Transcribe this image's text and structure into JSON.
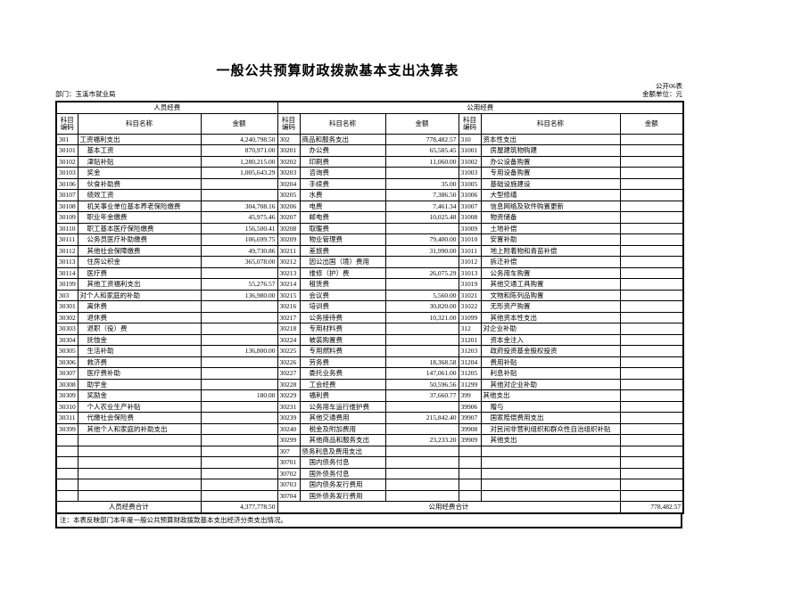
{
  "page": {
    "title": "一般公共预算财政拨款基本支出决算表",
    "form_code": "公开06表",
    "unit": "金额单位：元",
    "department": "部门：玉溪市就业局"
  },
  "table": {
    "group_headers": {
      "personnel": "人员经费",
      "public": "公用经费"
    },
    "col_headers": {
      "code": "科目编码",
      "name": "科目名称",
      "amount": "金额"
    },
    "rows": [
      [
        "301",
        "工资福利支出",
        "4,240,798.50",
        "302",
        "商品和服务支出",
        "778,482.57",
        "310",
        "资本性支出",
        ""
      ],
      [
        "30101",
        "基本工资",
        "870,971.00",
        "30201",
        "办公费",
        "65,585.45",
        "31001",
        "房屋建筑物购建",
        ""
      ],
      [
        "30102",
        "津贴补贴",
        "1,280,215.00",
        "30202",
        "印刷费",
        "11,060.00",
        "31002",
        "办公设备购置",
        ""
      ],
      [
        "30103",
        "奖金",
        "1,005,643.29",
        "30203",
        "咨询费",
        "",
        "31003",
        "专用设备购置",
        ""
      ],
      [
        "30106",
        "伙食补助费",
        "",
        "30204",
        "手续费",
        "35.00",
        "31005",
        "基础设施建设",
        ""
      ],
      [
        "30107",
        "绩效工资",
        "",
        "30205",
        "水费",
        "7,386.50",
        "31006",
        "大型修缮",
        ""
      ],
      [
        "30108",
        "机关事业单位基本养老保险缴费",
        "304,708.16",
        "30206",
        "电费",
        "7,461.34",
        "31007",
        "信息网络及软件购置更新",
        ""
      ],
      [
        "30109",
        "职业年金缴费",
        "45,975.46",
        "30207",
        "邮电费",
        "10,025.48",
        "31008",
        "物资储备",
        ""
      ],
      [
        "30110",
        "职工基本医疗保险缴费",
        "156,500.41",
        "30208",
        "取暖费",
        "",
        "31009",
        "土地补偿",
        ""
      ],
      [
        "30111",
        "公务员医疗补助缴费",
        "106,699.75",
        "30209",
        "物业管理费",
        "79,400.00",
        "31010",
        "安置补助",
        ""
      ],
      [
        "30112",
        "其他社会保障缴费",
        "49,730.86",
        "30211",
        "差旅费",
        "31,990.00",
        "31011",
        "地上附着物和青苗补偿",
        ""
      ],
      [
        "30113",
        "住房公积金",
        "365,078.00",
        "30212",
        "因公出国（境）费用",
        "",
        "31012",
        "拆迁补偿",
        ""
      ],
      [
        "30114",
        "医疗费",
        "",
        "30213",
        "维修（护）费",
        "26,075.29",
        "31013",
        "公务用车购置",
        ""
      ],
      [
        "30199",
        "其他工资福利支出",
        "55,276.57",
        "30214",
        "租赁费",
        "",
        "31019",
        "其他交通工具购置",
        ""
      ],
      [
        "303",
        "对个人和家庭的补助",
        "136,980.00",
        "30215",
        "会议费",
        "5,560.00",
        "31021",
        "文物和陈列品购置",
        ""
      ],
      [
        "30301",
        "离休费",
        "",
        "30216",
        "培训费",
        "30,820.00",
        "31022",
        "无形资产购置",
        ""
      ],
      [
        "30302",
        "退休费",
        "",
        "30217",
        "公务接待费",
        "10,321.00",
        "31099",
        "其他资本性支出",
        ""
      ],
      [
        "30303",
        "退职（役）费",
        "",
        "30218",
        "专用材料费",
        "",
        "312",
        "对企业补助",
        ""
      ],
      [
        "30304",
        "抚恤金",
        "",
        "30224",
        "被装购置费",
        "",
        "31201",
        "资本金注入",
        ""
      ],
      [
        "30305",
        "生活补助",
        "136,800.00",
        "30225",
        "专用燃料费",
        "",
        "31203",
        "政府投资基金股权投资",
        ""
      ],
      [
        "30306",
        "救济费",
        "",
        "30226",
        "劳务费",
        "18,368.58",
        "31204",
        "费用补贴",
        ""
      ],
      [
        "30307",
        "医疗费补助",
        "",
        "30227",
        "委托业务费",
        "147,061.00",
        "31205",
        "利息补贴",
        ""
      ],
      [
        "30308",
        "助学金",
        "",
        "30228",
        "工会经费",
        "50,596.56",
        "31299",
        "其他对企业补助",
        ""
      ],
      [
        "30309",
        "奖励金",
        "180.00",
        "30229",
        "福利费",
        "37,660.77",
        "399",
        "其他支出",
        ""
      ],
      [
        "30310",
        "个人农业生产补贴",
        "",
        "30231",
        "公务用车运行维护费",
        "",
        "39906",
        "赠与",
        ""
      ],
      [
        "30311",
        "代缴社会保险费",
        "",
        "30239",
        "其他交通费用",
        "215,842.40",
        "39907",
        "国家赔偿费用支出",
        ""
      ],
      [
        "30399",
        "其他个人和家庭的补助支出",
        "",
        "30240",
        "税金及附加费用",
        "",
        "39908",
        "对民间非营利组织和群众性自治组织补贴",
        ""
      ],
      [
        "",
        "",
        "",
        "30299",
        "其他商品和服务支出",
        "23,233.20",
        "39909",
        "其他支出",
        ""
      ],
      [
        "",
        "",
        "",
        "307",
        "债务利息及费用支出",
        "",
        "",
        "",
        ""
      ],
      [
        "",
        "",
        "",
        "30701",
        "国内债务付息",
        "",
        "",
        "",
        ""
      ],
      [
        "",
        "",
        "",
        "30702",
        "国外债务付息",
        "",
        "",
        "",
        ""
      ],
      [
        "",
        "",
        "",
        "30703",
        "国内债务发行费用",
        "",
        "",
        "",
        ""
      ],
      [
        "",
        "",
        "",
        "30704",
        "国外债务发行费用",
        "",
        "",
        "",
        ""
      ]
    ],
    "totals": {
      "personnel_label": "人员经费合计",
      "personnel_amount": "4,377,778.50",
      "public_label": "公用经费合计",
      "public_amount": "778,482.57"
    },
    "note": "注：本表反映部门本年度一般公共预算财政拨款基本支出经济分类支出情况。"
  }
}
